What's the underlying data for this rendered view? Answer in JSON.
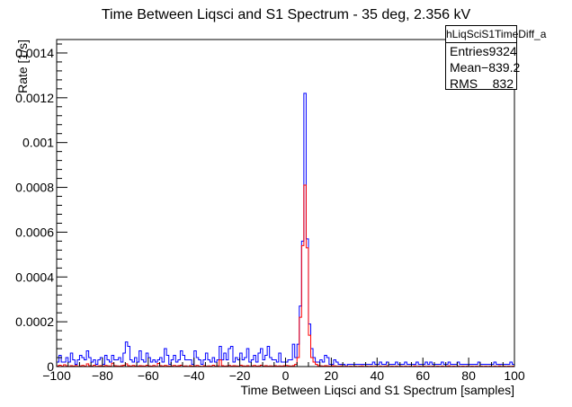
{
  "chart_data": {
    "type": "histogram",
    "title": "Time Between Liqsci and S1 Spectrum - 35 deg, 2.356 kV",
    "xlabel": "Time Between Liqsci and S1 Spectrum [samples]",
    "ylabel": "Rate [1/s]",
    "xlim": [
      -100,
      100
    ],
    "ylim": [
      0,
      0.00146
    ],
    "x_ticks": [
      "−100",
      "−80",
      "−60",
      "−40",
      "−20",
      "0",
      "20",
      "40",
      "60",
      "80",
      "100"
    ],
    "y_ticks": [
      "0",
      "0.0002",
      "0.0004",
      "0.0006",
      "0.0008",
      "0.001",
      "0.0012",
      "0.0014"
    ],
    "bin_width": 1,
    "x_start": -100,
    "series": [
      {
        "color": "#0000ff",
        "values": [
          2e-05,
          5e-05,
          2e-05,
          2e-05,
          4e-05,
          2e-05,
          6e-05,
          3e-05,
          1e-05,
          3e-05,
          5e-05,
          4e-05,
          3e-05,
          7e-05,
          4e-05,
          2e-05,
          3e-05,
          1e-05,
          3e-05,
          4e-05,
          1e-05,
          5e-05,
          3e-05,
          2e-05,
          5e-05,
          3e-05,
          3e-05,
          4e-05,
          2e-05,
          6e-05,
          0.00011,
          9e-05,
          3e-05,
          2e-05,
          4e-05,
          2e-05,
          7e-05,
          3e-05,
          2e-05,
          6e-05,
          4e-05,
          2e-05,
          3e-05,
          2e-05,
          3e-05,
          4e-05,
          2e-05,
          8e-05,
          5e-05,
          1e-05,
          3e-05,
          5e-05,
          2e-05,
          3e-05,
          7e-05,
          5e-05,
          3e-05,
          3e-05,
          3e-05,
          1e-05,
          7e-05,
          4e-05,
          3e-05,
          1e-05,
          3e-05,
          6e-05,
          3e-05,
          2e-05,
          4e-05,
          2e-05,
          3e-05,
          9e-05,
          3e-05,
          6e-05,
          3e-05,
          8e-05,
          9e-05,
          2e-05,
          4e-05,
          3e-05,
          6e-05,
          3e-05,
          4e-05,
          8e-05,
          2e-05,
          3e-05,
          5e-05,
          2e-05,
          6e-05,
          8e-05,
          3e-05,
          5e-05,
          9e-05,
          4e-05,
          3e-05,
          3e-05,
          2e-05,
          6e-05,
          2e-05,
          2e-05,
          2e-05,
          3e-05,
          3e-05,
          0.0001,
          0.00012,
          0.0001,
          3e-05,
          2e-05,
          4e-05,
          3e-05,
          8e-05,
          5e-05,
          3e-05,
          8e-05,
          2e-05,
          3e-05,
          2e-05,
          5e-05,
          4e-05,
          1e-05,
          1e-05,
          3e-05,
          2e-05,
          1e-05,
          1e-05,
          1e-05,
          0.0,
          1e-05,
          1e-05,
          1e-05,
          1e-05,
          1e-05,
          1e-05,
          1e-05,
          1e-05,
          1e-05,
          1e-05,
          1e-05,
          2e-05,
          1e-05,
          1e-05,
          2e-05,
          1e-05,
          1e-05,
          2e-05,
          1e-05,
          1e-05,
          1e-05,
          2e-05,
          1e-05,
          1e-05,
          1e-05,
          2e-05,
          1e-05,
          1e-05,
          1e-05,
          1e-05,
          2e-05,
          1e-05,
          1e-05,
          1e-05,
          2e-05,
          1e-05,
          2e-05,
          1e-05,
          1e-05,
          1e-05,
          1e-05,
          2e-05,
          1e-05,
          1e-05,
          2e-05,
          1e-05,
          1e-05,
          1e-05,
          2e-05,
          1e-05,
          1e-05,
          1e-05,
          1e-05,
          1e-05,
          1e-05,
          1e-05,
          1e-05,
          2e-05,
          1e-05,
          1e-05,
          1e-05,
          1e-05,
          1e-05,
          1e-05,
          2e-05,
          1e-05,
          1e-05,
          1e-05,
          1e-05,
          1e-05,
          1e-05,
          2e-05,
          1e-05
        ],
        "peak": {
          "x": [
            4,
            5,
            6,
            7,
            8,
            9,
            10,
            11,
            12,
            13
          ],
          "values": [
            4e-05,
            0.0001,
            0.00027,
            0.00056,
            0.00122,
            0.00057,
            0.00019,
            8e-05,
            4e-05,
            2e-05
          ]
        }
      },
      {
        "color": "#ff0000",
        "values": [
          3e-06,
          6e-06,
          2e-06,
          8e-06,
          3e-06,
          1e-06,
          4e-06,
          2e-06,
          5e-06,
          1e-06,
          3e-06,
          5e-06,
          2e-06,
          1.2e-05,
          4e-06,
          2e-06,
          6e-06,
          1e-06,
          3e-06,
          4e-06,
          2e-06,
          5e-06,
          3e-06,
          2e-06,
          1.5e-05,
          4e-06,
          3e-06,
          2e-06,
          4e-06,
          6e-06,
          1.2e-05,
          4e-06,
          2e-06,
          5e-06,
          3e-06,
          2e-06,
          4e-06,
          3e-06,
          2e-06,
          6e-06,
          3e-06,
          2e-06,
          5e-06,
          1e-06,
          1.4e-05,
          4e-06,
          2e-06,
          5e-06,
          3e-06,
          2e-06,
          3e-06,
          5e-06,
          2e-06,
          4e-06,
          6e-06,
          2e-06,
          3e-06,
          1e-06,
          4e-06,
          2e-06,
          3e-06,
          5e-06,
          2e-06,
          1e-06,
          4e-06,
          2e-06,
          3e-06,
          2e-06,
          6e-06,
          2e-06,
          3e-06,
          3e-05,
          4e-06,
          2e-06,
          3e-06,
          5e-06,
          2e-06,
          4e-06,
          3e-06,
          2e-06,
          6e-06,
          3e-06,
          2e-06,
          4e-06,
          1e-06,
          3e-06,
          5e-06,
          2e-06,
          3e-06,
          6e-06,
          2e-06,
          4e-06,
          2e-06,
          3e-06,
          2e-06,
          4e-06,
          2e-06,
          3e-06,
          2e-06,
          4e-06,
          5e-06,
          3e-06,
          2e-06,
          4e-06,
          3e-06,
          2e-06,
          4e-06,
          3e-06,
          6e-06,
          4e-06,
          3e-06,
          5e-06,
          4e-06,
          2e-06,
          4e-06,
          3e-06,
          2e-06,
          4e-06,
          3e-06,
          2e-06,
          4e-06,
          3e-06,
          2e-06,
          2e-06,
          3e-06,
          1e-06,
          2e-06,
          1e-06,
          2e-06,
          1e-06,
          2e-06,
          1e-06,
          2e-06,
          3e-06,
          1e-06,
          2e-06,
          1e-06,
          2e-06,
          1e-06,
          2e-06,
          1e-06,
          2e-06,
          1e-06,
          2e-06,
          3e-06,
          1e-06,
          2e-06,
          1e-06,
          2e-06,
          1e-06,
          2e-06,
          1e-06,
          2e-06,
          1e-06,
          2e-06,
          1e-06,
          3e-06,
          1e-06,
          2e-06,
          1e-06,
          2e-06,
          1e-06,
          2e-06,
          1e-06,
          2e-06,
          1e-06,
          2e-06,
          1e-06,
          2e-06,
          1e-06,
          2e-06,
          3e-06,
          1e-06,
          2e-06,
          1e-06,
          2e-06,
          1e-06,
          2e-06,
          1e-06,
          2e-06,
          1e-06,
          2e-06,
          1e-06,
          2e-06,
          1e-06,
          2e-06,
          1e-06,
          2e-06,
          1e-06,
          2e-06,
          1e-06,
          2e-06,
          1e-06,
          3e-06,
          1e-06,
          2e-06,
          1e-06,
          2e-06,
          1e-06,
          2e-06
        ],
        "peak": {
          "x": [
            4,
            5,
            6,
            7,
            8,
            9,
            10,
            11,
            12,
            13
          ],
          "values": [
            1e-05,
            4e-05,
            0.00022,
            0.00054,
            0.00081,
            0.00053,
            0.00014,
            4e-05,
            2e-05,
            1e-05
          ]
        }
      }
    ]
  },
  "stats": {
    "name": "hLiqSciS1TimeDiff_a",
    "rows": [
      {
        "label": "Entries",
        "value": "9324"
      },
      {
        "label": "Mean",
        "value": "−839.2"
      },
      {
        "label": "RMS",
        "value": "832"
      }
    ]
  }
}
